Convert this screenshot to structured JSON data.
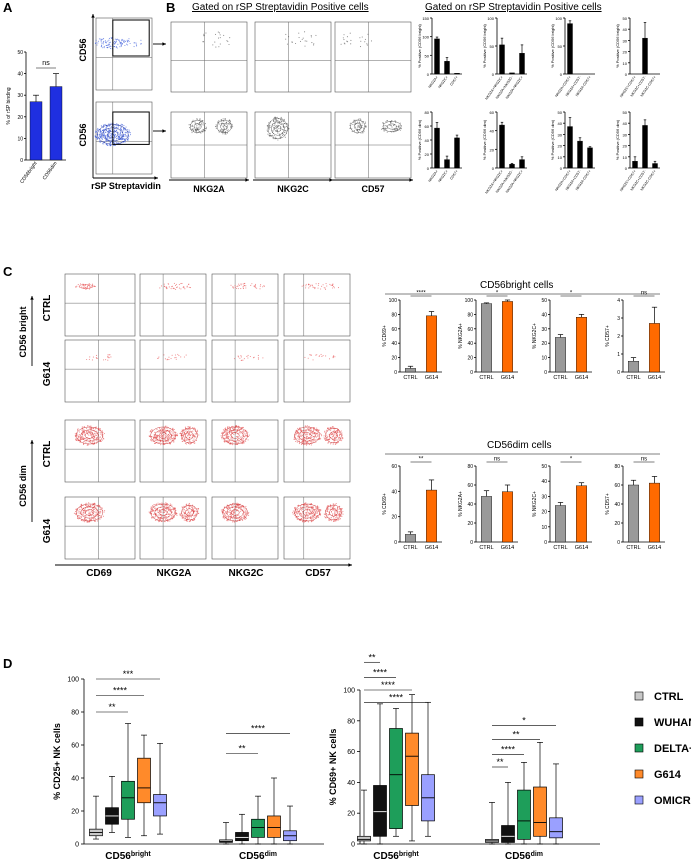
{
  "panel_labels": {
    "a": "A",
    "b": "B",
    "c": "C",
    "d": "D"
  },
  "colors": {
    "blue": "#1f2fe0",
    "gray": "#9a9a9a",
    "orange": "#ff6a00",
    "black": "#000000",
    "ctrl_box": "#c8c8c8",
    "wuhan_box": "#111111",
    "delta_box": "#1e9e5a",
    "g614_box": "#ff8a2a",
    "omicron_box": "#9aa0ff",
    "flow_blue": "#3b5bdb",
    "flow_red": "#e8585a",
    "flow_gray": "#555555"
  },
  "panelA": {
    "ylabel": "% of rSP binding",
    "sig": "ns",
    "categories": [
      "CD56bright",
      "CD56dim"
    ],
    "values": [
      27,
      34
    ],
    "errors": [
      3,
      6
    ],
    "ylim": [
      0,
      50
    ],
    "ticks": [
      "0",
      "10",
      "20",
      "30",
      "40",
      "50"
    ]
  },
  "panelB": {
    "title": "Gated on rSP Streptavidin Positive cells",
    "title_right": "Gated on rSP Streptavidin Positive cells",
    "row_labels": [
      "CD56bright",
      "CD56dim"
    ],
    "xaxis_label": "rSP Streptavidin",
    "column_labels": [
      "NKG2A",
      "NKG2C",
      "CD57"
    ]
  },
  "panelC": {
    "row_labels": [
      "CTRL",
      "G614",
      "CTRL",
      "G614"
    ],
    "group_labels": [
      "CD56 bright",
      "CD56 dim"
    ],
    "column_labels": [
      "CD69",
      "NKG2A",
      "NKG2C",
      "CD57"
    ],
    "title_bright": "CD56bright cells",
    "title_dim": "CD56dim cells"
  },
  "panelD": {
    "left_ylabel": "% CD25+ NK cells",
    "right_ylabel": "% CD69+ NK cells",
    "group_labels": [
      "CD56bright",
      "CD56dim"
    ],
    "legend": [
      "CTRL",
      "WUHAN",
      "DELTA+",
      "G614",
      "OMICRON"
    ],
    "left_ticks": [
      "0",
      "20",
      "40",
      "60",
      "80",
      "100"
    ],
    "right_ticks": [
      "0",
      "20",
      "40",
      "60",
      "80",
      "100"
    ]
  },
  "chart_data": [
    {
      "id": "A",
      "type": "bar",
      "categories": [
        "CD56bright",
        "CD56dim"
      ],
      "values": [
        27,
        34
      ],
      "errors": [
        3,
        6
      ],
      "ylabel": "% of rSP binding",
      "ylim": [
        0,
        50
      ]
    },
    {
      "id": "B-bright-1",
      "type": "bar",
      "categories": [
        "NKG2A+",
        "NKG2C+",
        "CD57+"
      ],
      "values": [
        94,
        34,
        2
      ],
      "errors": [
        5,
        10,
        0
      ],
      "ylabel": "% Positive (CD56 bright)",
      "ylim": [
        0,
        150
      ]
    },
    {
      "id": "B-bright-2",
      "type": "bar",
      "categories": [
        "NKG2A+NKG2C+",
        "NKG2A+NKG2C-",
        "NKG2A-NKG2C+"
      ],
      "values": [
        52,
        2,
        37
      ],
      "errors": [
        12,
        0,
        15
      ],
      "ylabel": "% Positive (CD56 bright)",
      "ylim": [
        0,
        100
      ]
    },
    {
      "id": "B-bright-3",
      "type": "bar",
      "categories": [
        "NKG2A+CD57+",
        "NKG2A+CD57-",
        "NKG2A-CD57+"
      ],
      "values": [
        90,
        0,
        0
      ],
      "errors": [
        5,
        0,
        0
      ],
      "ylabel": "% Positive (CD56 bright)",
      "ylim": [
        0,
        100
      ]
    },
    {
      "id": "B-bright-4",
      "type": "bar",
      "categories": [
        "NKG2C+CD57+",
        "NKG2C+CD57-",
        "NKG2C-CD57+"
      ],
      "values": [
        0,
        32,
        0
      ],
      "errors": [
        0,
        14,
        0
      ],
      "ylabel": "% Positive (CD56 bright)",
      "ylim": [
        0,
        50
      ]
    },
    {
      "id": "B-dim-1",
      "type": "bar",
      "categories": [
        "NKG2A+",
        "NKG2C+",
        "CD57+"
      ],
      "values": [
        57,
        12,
        43
      ],
      "errors": [
        8,
        5,
        4
      ],
      "ylabel": "% Positive (CD56 dim)",
      "ylim": [
        0,
        80
      ]
    },
    {
      "id": "B-dim-2",
      "type": "bar",
      "categories": [
        "NKG2A+NKG2C+",
        "NKG2A+NKG2C-",
        "NKG2A-NKG2C+"
      ],
      "values": [
        46,
        4,
        9
      ],
      "errors": [
        3,
        1,
        3
      ],
      "ylabel": "% Positive (CD56 dim)",
      "ylim": [
        0,
        60
      ]
    },
    {
      "id": "B-dim-3",
      "type": "bar",
      "categories": [
        "NKG2A+CD57+",
        "NKG2A+CD57-",
        "NKG2A-CD57+"
      ],
      "values": [
        37,
        24,
        18
      ],
      "errors": [
        8,
        3,
        1
      ],
      "ylabel": "% Positive (CD56 dim)",
      "ylim": [
        0,
        50
      ]
    },
    {
      "id": "B-dim-4",
      "type": "bar",
      "categories": [
        "NKG2C+CD57+",
        "NKG2C+CD57-",
        "NKG2C-CD57+"
      ],
      "values": [
        6,
        38,
        4
      ],
      "errors": [
        4,
        5,
        2
      ],
      "ylabel": "% Positive (CD56 dim)",
      "ylim": [
        0,
        50
      ]
    },
    {
      "id": "C-bright-CD69",
      "type": "bar",
      "categories": [
        "CTRL",
        "G614"
      ],
      "values": [
        5,
        78
      ],
      "errors": [
        3,
        6
      ],
      "sig": "****",
      "ylabel": "% CD69+",
      "ylim": [
        0,
        100
      ],
      "ticks": [
        0,
        20,
        40,
        60,
        80,
        100
      ]
    },
    {
      "id": "C-bright-NKG2A",
      "type": "bar",
      "categories": [
        "CTRL",
        "G614"
      ],
      "values": [
        95,
        98
      ],
      "errors": [
        1,
        2
      ],
      "sig": "*",
      "ylabel": "% NKG2A+",
      "ylim": [
        0,
        100
      ],
      "ticks": [
        0,
        20,
        40,
        60,
        80,
        100
      ]
    },
    {
      "id": "C-bright-NKG2C",
      "type": "bar",
      "categories": [
        "CTRL",
        "G614"
      ],
      "values": [
        24,
        38
      ],
      "errors": [
        2,
        2
      ],
      "sig": "*",
      "ylabel": "% NKG2C+",
      "ylim": [
        0,
        50
      ],
      "ticks": [
        0,
        10,
        20,
        30,
        40,
        50
      ]
    },
    {
      "id": "C-bright-CD57",
      "type": "bar",
      "categories": [
        "CTRL",
        "G614"
      ],
      "values": [
        0.6,
        2.7
      ],
      "errors": [
        0.2,
        0.9
      ],
      "sig": "ns",
      "ylabel": "% CD57+",
      "ylim": [
        0,
        4
      ],
      "ticks": [
        0,
        1,
        2,
        3,
        4
      ]
    },
    {
      "id": "C-dim-CD69",
      "type": "bar",
      "categories": [
        "CTRL",
        "G614"
      ],
      "values": [
        6,
        41
      ],
      "errors": [
        2,
        8
      ],
      "sig": "**",
      "ylabel": "% CD69+",
      "ylim": [
        0,
        60
      ],
      "ticks": [
        0,
        20,
        40,
        60
      ]
    },
    {
      "id": "C-dim-NKG2A",
      "type": "bar",
      "categories": [
        "CTRL",
        "G614"
      ],
      "values": [
        48,
        53
      ],
      "errors": [
        6,
        7
      ],
      "sig": "ns",
      "ylabel": "% NKG2A+",
      "ylim": [
        0,
        80
      ],
      "ticks": [
        0,
        20,
        40,
        60,
        80
      ]
    },
    {
      "id": "C-dim-NKG2C",
      "type": "bar",
      "categories": [
        "CTRL",
        "G614"
      ],
      "values": [
        24,
        37
      ],
      "errors": [
        2,
        2
      ],
      "sig": "*",
      "ylabel": "% NKG2C+",
      "ylim": [
        0,
        50
      ],
      "ticks": [
        0,
        10,
        20,
        30,
        40,
        50
      ]
    },
    {
      "id": "C-dim-CD57",
      "type": "bar",
      "categories": [
        "CTRL",
        "G614"
      ],
      "values": [
        60,
        62
      ],
      "errors": [
        5,
        7
      ],
      "sig": "ns",
      "ylabel": "% CD57+",
      "ylim": [
        0,
        80
      ],
      "ticks": [
        0,
        20,
        40,
        60,
        80
      ]
    },
    {
      "id": "D-CD25",
      "type": "box",
      "ylabel": "% CD25+ NK cells",
      "ylim": [
        0,
        100
      ],
      "groups": [
        "CD56bright",
        "CD56dim"
      ],
      "series": [
        {
          "name": "CTRL",
          "boxes": [
            [
              3,
              5,
              7,
              9,
              29
            ],
            [
              0,
              1,
              1.5,
              2.5,
              13
            ]
          ]
        },
        {
          "name": "WUHAN",
          "boxes": [
            [
              7,
              12,
              17,
              22,
              41
            ],
            [
              0,
              2,
              4,
              7,
              18
            ]
          ]
        },
        {
          "name": "DELTA+",
          "boxes": [
            [
              4,
              15,
              28,
              38,
              73
            ],
            [
              0,
              4,
              10,
              15,
              29
            ]
          ]
        },
        {
          "name": "G614",
          "boxes": [
            [
              5,
              25,
              34,
              52,
              66
            ],
            [
              0,
              4,
              10,
              17,
              40
            ]
          ]
        },
        {
          "name": "OMICRON",
          "boxes": [
            [
              6,
              17,
              25,
              30,
              61
            ],
            [
              0,
              2,
              5,
              8,
              23
            ]
          ]
        }
      ],
      "significance": [
        {
          "label": "**",
          "group": "CD56bright"
        },
        {
          "label": "****",
          "group": "CD56bright"
        },
        {
          "label": "***",
          "group": "CD56bright"
        },
        {
          "label": "**",
          "group": "CD56dim"
        },
        {
          "label": "****",
          "group": "CD56dim"
        }
      ]
    },
    {
      "id": "D-CD69",
      "type": "box",
      "ylabel": "% CD69+ NK cells",
      "ylim": [
        0,
        100
      ],
      "groups": [
        "CD56bright",
        "CD56dim"
      ],
      "series": [
        {
          "name": "CTRL",
          "boxes": [
            [
              0,
              2,
              3,
              5,
              35
            ],
            [
              0,
              1,
              2,
              3,
              27
            ]
          ]
        },
        {
          "name": "WUHAN",
          "boxes": [
            [
              0,
              5,
              21,
              38,
              91
            ],
            [
              0,
              1,
              5,
              12,
              40
            ]
          ]
        },
        {
          "name": "DELTA+",
          "boxes": [
            [
              5,
              10,
              45,
              75,
              88
            ],
            [
              0,
              3,
              15,
              35,
              53
            ]
          ]
        },
        {
          "name": "G614",
          "boxes": [
            [
              2,
              25,
              57,
              72,
              97
            ],
            [
              0,
              5,
              14,
              37,
              66
            ]
          ]
        },
        {
          "name": "OMICRON",
          "boxes": [
            [
              5,
              15,
              30,
              45,
              92
            ],
            [
              0,
              4,
              8,
              17,
              52
            ]
          ]
        }
      ],
      "significance": [
        {
          "label": "**",
          "group": "CD56bright"
        },
        {
          "label": "****",
          "group": "CD56bright"
        },
        {
          "label": "****",
          "group": "CD56bright"
        },
        {
          "label": "****",
          "group": "CD56bright"
        },
        {
          "label": "*",
          "group": "CD56dim"
        },
        {
          "label": "**",
          "group": "CD56dim"
        },
        {
          "label": "****",
          "group": "CD56dim"
        },
        {
          "label": "**",
          "group": "CD56dim"
        }
      ]
    }
  ]
}
